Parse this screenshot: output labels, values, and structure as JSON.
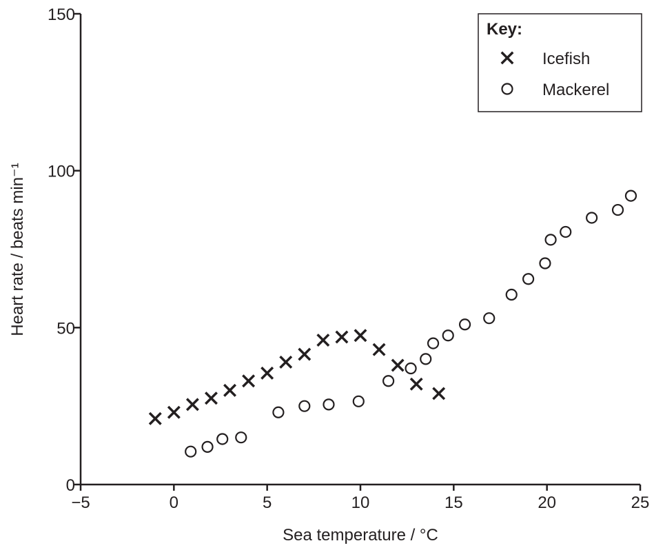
{
  "chart_data": {
    "type": "scatter",
    "title": "",
    "xlabel": "Sea temperature / °C",
    "ylabel": "Heart rate / beats min⁻¹",
    "xlim": [
      -5,
      25
    ],
    "ylim": [
      0,
      150
    ],
    "xticks": [
      -5,
      0,
      5,
      10,
      15,
      20,
      25
    ],
    "yticks": [
      0,
      50,
      100,
      150
    ],
    "xtick_labels": [
      "−5",
      "0",
      "5",
      "10",
      "15",
      "20",
      "25"
    ],
    "ytick_labels": [
      "0",
      "50",
      "100",
      "150"
    ],
    "grid": false,
    "legend": {
      "title": "Key:",
      "position": "top-right",
      "entries": [
        {
          "symbol": "×",
          "marker": "x",
          "label": "Icefish"
        },
        {
          "symbol": "o",
          "marker": "circle",
          "label": "Mackerel"
        }
      ]
    },
    "series": [
      {
        "name": "Icefish",
        "marker": "x",
        "x": [
          -1.0,
          0.0,
          1.0,
          2.0,
          3.0,
          4.0,
          5.0,
          6.0,
          7.0,
          8.0,
          9.0,
          10.0,
          11.0,
          12.0,
          13.0,
          14.2
        ],
        "y": [
          21,
          23,
          25.5,
          27.5,
          30,
          33,
          35.5,
          39,
          41.5,
          46,
          47,
          47.5,
          43,
          38,
          32,
          29
        ]
      },
      {
        "name": "Mackerel",
        "marker": "circle",
        "x": [
          0.9,
          1.8,
          2.6,
          3.6,
          5.6,
          7.0,
          8.3,
          9.9,
          11.5,
          12.7,
          13.5,
          13.9,
          14.7,
          15.6,
          16.9,
          18.1,
          19.0,
          19.9,
          20.2,
          21.0,
          22.4,
          23.8,
          24.5
        ],
        "y": [
          10.5,
          12,
          14.5,
          15,
          23,
          25,
          25.5,
          26.5,
          33,
          37,
          40,
          45,
          47.5,
          51,
          53,
          60.5,
          65.5,
          70.5,
          78,
          80.5,
          85,
          87.5,
          92
        ]
      }
    ]
  }
}
